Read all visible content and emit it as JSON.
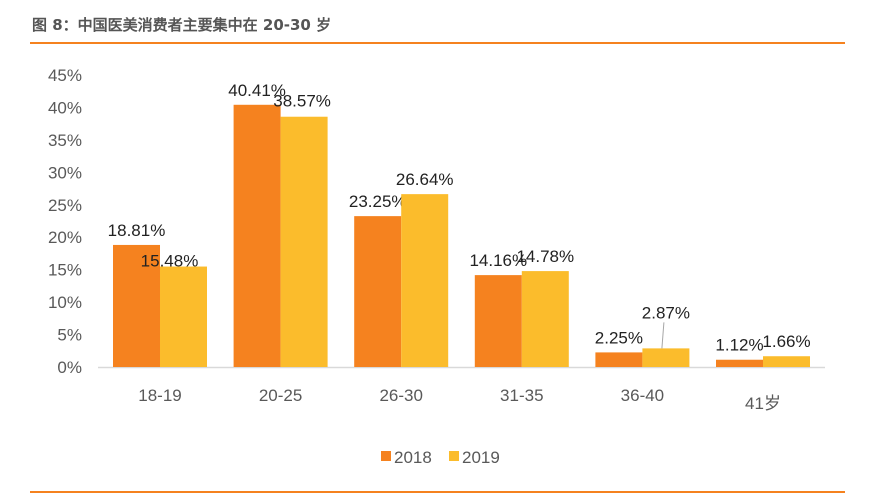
{
  "title": "图 8：中国医美消费者主要集中在 20-30 岁",
  "chart_data": {
    "type": "bar",
    "title": "",
    "xlabel": "",
    "ylabel": "",
    "categories": [
      "18-19",
      "20-25",
      "26-30",
      "31-35",
      "36-40",
      "41岁"
    ],
    "series": [
      {
        "name": "2018",
        "color": "#F5821F",
        "values": [
          18.81,
          40.41,
          23.25,
          14.16,
          2.25,
          1.12
        ],
        "labels": [
          "18.81%",
          "40.41%",
          "23.25%",
          "14.16%",
          "2.25%",
          "1.12%"
        ]
      },
      {
        "name": "2019",
        "color": "#FBBC2C",
        "values": [
          15.48,
          38.57,
          26.64,
          14.78,
          2.87,
          1.66
        ],
        "labels": [
          "15.48%",
          "38.57%",
          "26.64%",
          "14.78%",
          "2.87%",
          "1.66%"
        ]
      }
    ],
    "ylim": [
      0,
      45
    ],
    "yticks": [
      "0%",
      "5%",
      "10%",
      "15%",
      "20%",
      "25%",
      "30%",
      "35%",
      "40%",
      "45%"
    ],
    "grid": false,
    "legend": "bottom"
  }
}
